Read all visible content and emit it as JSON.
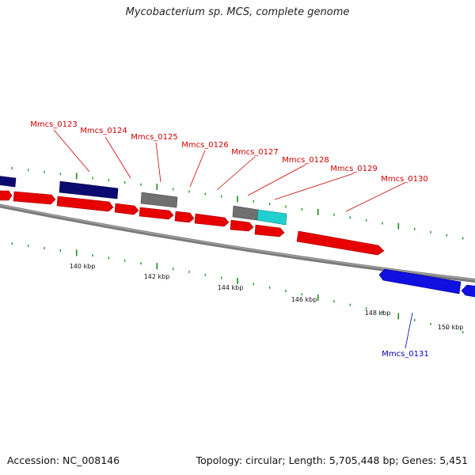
{
  "title": "Mycobacterium sp. MCS, complete genome",
  "accession": "Accession: NC_008146",
  "stats": "Topology: circular; Length: 5,705,448 bp; Genes: 5,451",
  "colors": {
    "forward_gene": "#e60000",
    "reverse_gene": "#1010e0",
    "dark_gene": "#0a0a70",
    "grey_gene": "#707070",
    "cyan_gene": "#20d0d0",
    "backbone": "#808080",
    "tick": "#1a8c1a",
    "forward_label": "#cc0000",
    "reverse_label": "#0000bb"
  },
  "scale_labels": [
    "140 kbp",
    "142 kbp",
    "144 kbp",
    "146 kbp",
    "148 kbp",
    "150 kbp"
  ],
  "gene_labels": [
    {
      "text": "Mmcs_0123",
      "strand": "forward"
    },
    {
      "text": "Mmcs_0124",
      "strand": "forward"
    },
    {
      "text": "Mmcs_0125",
      "strand": "forward"
    },
    {
      "text": "Mmcs_0126",
      "strand": "forward"
    },
    {
      "text": "Mmcs_0127",
      "strand": "forward"
    },
    {
      "text": "Mmcs_0128",
      "strand": "forward"
    },
    {
      "text": "Mmcs_0129",
      "strand": "forward"
    },
    {
      "text": "Mmcs_0130",
      "strand": "forward"
    },
    {
      "text": "Mmcs_0131",
      "strand": "reverse"
    }
  ]
}
